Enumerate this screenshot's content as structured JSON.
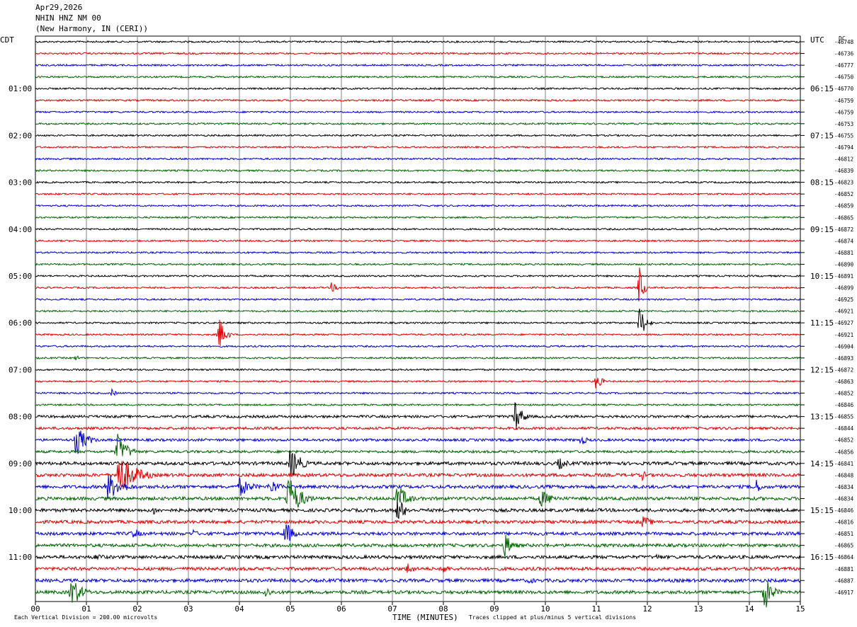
{
  "header": {
    "date": "Apr29,2026",
    "station": "NHIN HNZ NM 00",
    "location": "(New Harmony, IN (CERI))"
  },
  "left_timezone": "CDT",
  "right_timezone": "UTC",
  "dc_label": "DC",
  "footer": {
    "scale_note": "Each Vertical Division =  200.00 microvolts",
    "clip_note": "Traces clipped at plus/minus 5 vertical divisions"
  },
  "colors": {
    "trace_cycle": [
      "#000000",
      "#e00000",
      "#0000d0",
      "#006400"
    ],
    "grid": "#808080",
    "frame": "#000000"
  },
  "chart_data": {
    "type": "line",
    "title": "",
    "xlabel": "TIME (MINUTES)",
    "xlim": [
      0,
      15
    ],
    "x_ticks": [
      "00",
      "01",
      "02",
      "03",
      "04",
      "05",
      "06",
      "07",
      "08",
      "09",
      "10",
      "11",
      "12",
      "13",
      "14",
      "15"
    ],
    "left_hour_labels": [
      "01:00",
      "02:00",
      "03:00",
      "04:00",
      "05:00",
      "06:00",
      "07:00",
      "08:00",
      "09:00",
      "10:00",
      "11:00"
    ],
    "right_hour_labels": [
      "06:15",
      "07:15",
      "08:15",
      "09:15",
      "10:15",
      "11:15",
      "12:15",
      "13:15",
      "14:15",
      "15:15",
      "16:15"
    ],
    "trace_count": 48,
    "dc_values": [
      "-46748",
      "-46736",
      "-46777",
      "-46750",
      "-46770",
      "-46759",
      "-46759",
      "-46753",
      "-46755",
      "-46794",
      "-46812",
      "-46839",
      "-46823",
      "-46852",
      "-46859",
      "-46865",
      "-46872",
      "-46874",
      "-46881",
      "-46890",
      "-46891",
      "-46899",
      "-46925",
      "-46921",
      "-46927",
      "-46921",
      "-46904",
      "-46893",
      "-46872",
      "-46863",
      "-46852",
      "-46846",
      "-46855",
      "-46844",
      "-46852",
      "-46856",
      "-46841",
      "-46848",
      "-46834",
      "-46834",
      "-46846",
      "-46816",
      "-46851",
      "-46865",
      "-46864",
      "-46881",
      "-46887",
      "-46917"
    ],
    "events": [
      {
        "trace": 21,
        "minute": 5.8,
        "amp": 0.8,
        "dur": 0.25
      },
      {
        "trace": 21,
        "minute": 11.85,
        "amp": 3.5,
        "dur": 0.15
      },
      {
        "trace": 24,
        "minute": 11.85,
        "amp": 2.6,
        "dur": 0.25
      },
      {
        "trace": 25,
        "minute": 3.6,
        "amp": 2.6,
        "dur": 0.25
      },
      {
        "trace": 27,
        "minute": 0.8,
        "amp": 0.6,
        "dur": 0.1
      },
      {
        "trace": 29,
        "minute": 11.0,
        "amp": 1.5,
        "dur": 0.2
      },
      {
        "trace": 30,
        "minute": 1.5,
        "amp": 0.6,
        "dur": 0.2
      },
      {
        "trace": 32,
        "minute": 9.4,
        "amp": 2.5,
        "dur": 0.3
      },
      {
        "trace": 34,
        "minute": 0.8,
        "amp": 2.4,
        "dur": 0.4
      },
      {
        "trace": 34,
        "minute": 10.7,
        "amp": 0.8,
        "dur": 0.3
      },
      {
        "trace": 35,
        "minute": 1.6,
        "amp": 2.8,
        "dur": 0.4
      },
      {
        "trace": 36,
        "minute": 5.0,
        "amp": 2.6,
        "dur": 0.4
      },
      {
        "trace": 36,
        "minute": 10.25,
        "amp": 1.0,
        "dur": 0.4
      },
      {
        "trace": 37,
        "minute": 1.6,
        "amp": 3.5,
        "dur": 0.7
      },
      {
        "trace": 37,
        "minute": 11.9,
        "amp": 0.8,
        "dur": 0.2
      },
      {
        "trace": 38,
        "minute": 1.4,
        "amp": 2.2,
        "dur": 0.6
      },
      {
        "trace": 38,
        "minute": 4.0,
        "amp": 1.5,
        "dur": 0.5
      },
      {
        "trace": 38,
        "minute": 4.6,
        "amp": 1.3,
        "dur": 0.4
      },
      {
        "trace": 38,
        "minute": 14.1,
        "amp": 1.5,
        "dur": 0.25
      },
      {
        "trace": 39,
        "minute": 4.95,
        "amp": 3.5,
        "dur": 0.5
      },
      {
        "trace": 39,
        "minute": 7.1,
        "amp": 2.2,
        "dur": 0.4
      },
      {
        "trace": 39,
        "minute": 9.9,
        "amp": 1.3,
        "dur": 0.6
      },
      {
        "trace": 40,
        "minute": 7.1,
        "amp": 2.2,
        "dur": 0.3
      },
      {
        "trace": 40,
        "minute": 2.3,
        "amp": 0.8,
        "dur": 0.3
      },
      {
        "trace": 41,
        "minute": 11.9,
        "amp": 1.0,
        "dur": 0.4
      },
      {
        "trace": 42,
        "minute": 4.9,
        "amp": 2.0,
        "dur": 0.3
      },
      {
        "trace": 42,
        "minute": 1.9,
        "amp": 0.8,
        "dur": 0.4
      },
      {
        "trace": 42,
        "minute": 3.1,
        "amp": 0.7,
        "dur": 0.2
      },
      {
        "trace": 43,
        "minute": 9.2,
        "amp": 2.0,
        "dur": 0.3
      },
      {
        "trace": 44,
        "minute": 1.2,
        "amp": 0.8,
        "dur": 0.3
      },
      {
        "trace": 44,
        "minute": 12.2,
        "amp": 0.7,
        "dur": 0.2
      },
      {
        "trace": 45,
        "minute": 7.3,
        "amp": 1.0,
        "dur": 0.3
      },
      {
        "trace": 45,
        "minute": 8.0,
        "amp": 1.0,
        "dur": 0.2
      },
      {
        "trace": 46,
        "minute": 9.7,
        "amp": 0.7,
        "dur": 0.2
      },
      {
        "trace": 47,
        "minute": 0.7,
        "amp": 2.5,
        "dur": 0.4
      },
      {
        "trace": 47,
        "minute": 14.3,
        "amp": 2.8,
        "dur": 0.3
      },
      {
        "trace": 47,
        "minute": 4.5,
        "amp": 1.0,
        "dur": 0.3
      }
    ]
  }
}
